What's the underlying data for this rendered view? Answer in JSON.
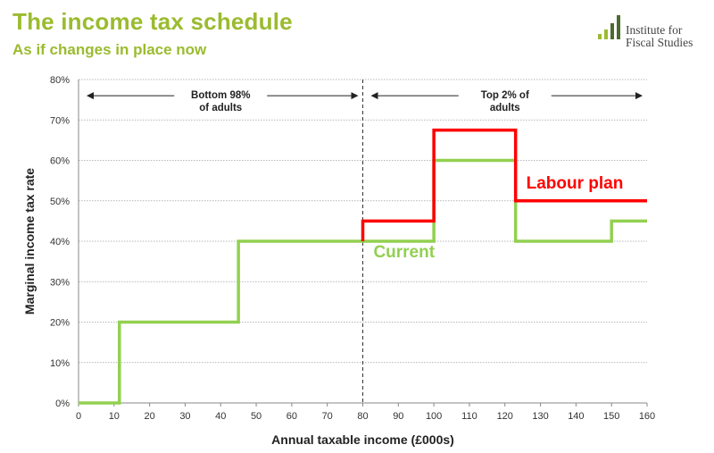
{
  "header": {
    "title": "The income tax schedule",
    "subtitle": "As if changes in place now"
  },
  "logo": {
    "line1": "Institute for",
    "line2": "Fiscal Studies",
    "bar_colors": [
      "#9BBB2F",
      "#9BBB2F",
      "#4E6B2F",
      "#4E6B2F"
    ]
  },
  "chart_data": {
    "type": "line",
    "step": true,
    "title": "The income tax schedule",
    "subtitle": "As if changes in place now",
    "xlabel": "Annual  taxable income (£000s)",
    "ylabel": "Marginal income tax rate",
    "xlim": [
      0,
      160
    ],
    "ylim": [
      0,
      80
    ],
    "xticks": [
      0,
      10,
      20,
      30,
      40,
      50,
      60,
      70,
      80,
      90,
      100,
      110,
      120,
      130,
      140,
      150,
      160
    ],
    "xtick_labels": [
      "0",
      "10",
      "20",
      "30",
      "40",
      "50",
      "60",
      "70",
      "80",
      "90",
      "100",
      "110",
      "120",
      "130",
      "140",
      "150",
      "160"
    ],
    "yticks": [
      0,
      10,
      20,
      30,
      40,
      50,
      60,
      70,
      80
    ],
    "ytick_labels": [
      "0%",
      "10%",
      "20%",
      "30%",
      "40%",
      "50%",
      "60%",
      "70%",
      "80%"
    ],
    "grid": "horizontal",
    "legend": "none",
    "series": [
      {
        "name": "Current",
        "color": "#92D050",
        "points": [
          [
            0,
            0
          ],
          [
            11.5,
            0
          ],
          [
            11.5,
            20
          ],
          [
            45,
            20
          ],
          [
            45,
            40
          ],
          [
            100,
            40
          ],
          [
            100,
            60
          ],
          [
            123,
            60
          ],
          [
            123,
            40
          ],
          [
            150,
            40
          ],
          [
            150,
            45
          ],
          [
            160,
            45
          ]
        ]
      },
      {
        "name": "Labour plan",
        "color": "#FF0000",
        "points": [
          [
            80,
            40
          ],
          [
            80,
            45
          ],
          [
            100,
            45
          ],
          [
            100,
            67.5
          ],
          [
            123,
            67.5
          ],
          [
            123,
            50
          ],
          [
            160,
            50
          ]
        ]
      }
    ],
    "series_labels": [
      {
        "text": "Current",
        "color": "#92D050",
        "x": 83,
        "y": 36
      },
      {
        "text": "Labour plan",
        "color": "#FF0000",
        "x": 126,
        "y": 53
      }
    ],
    "divider": {
      "x": 80,
      "style": "dashed"
    },
    "annotations": [
      {
        "lines": [
          "Bottom 98%",
          "of adults"
        ],
        "x_from": 0,
        "x_to": 80,
        "y": 76
      },
      {
        "lines": [
          "Top 2% of",
          "adults"
        ],
        "x_from": 80,
        "x_to": 160,
        "y": 76
      }
    ]
  }
}
